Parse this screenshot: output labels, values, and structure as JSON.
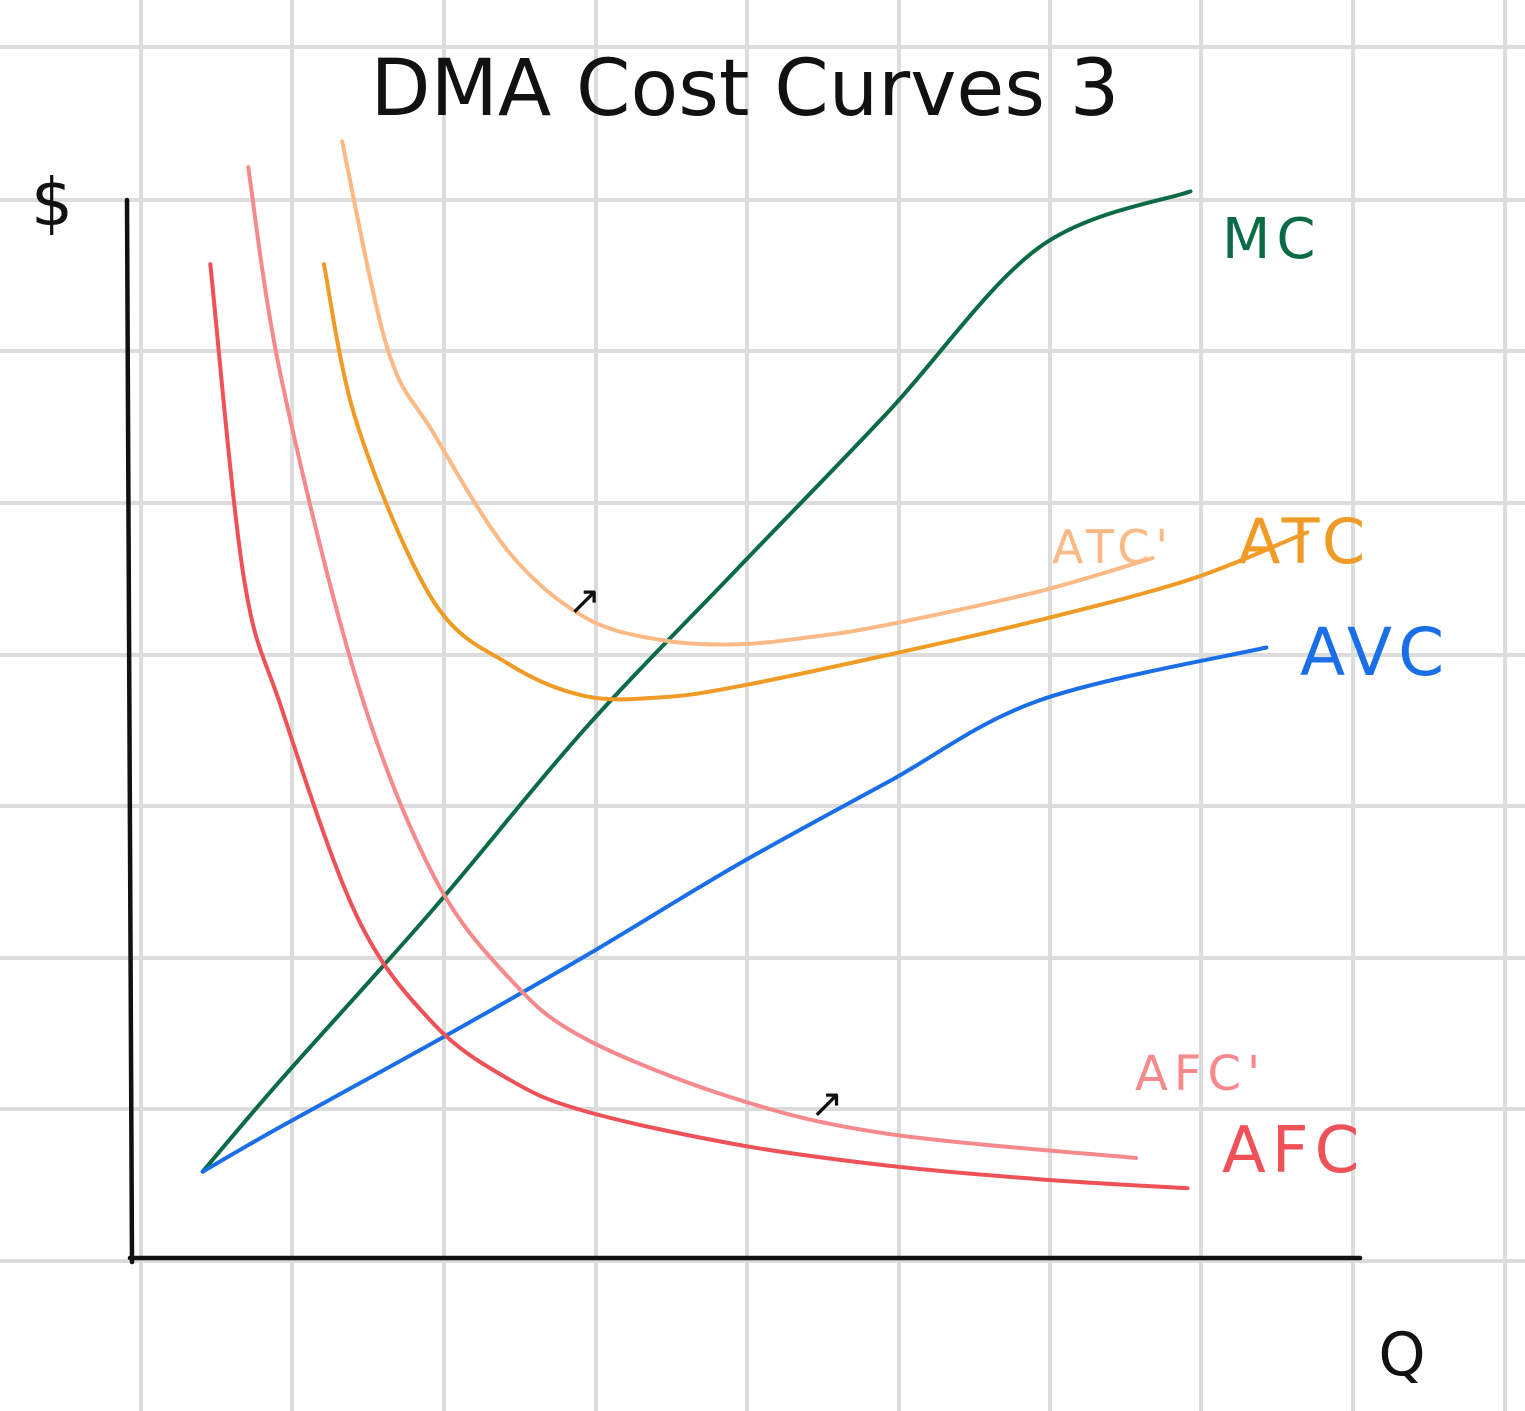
{
  "chart_data": {
    "type": "line",
    "title": "DMA Cost Curves 3",
    "xlabel": "Q",
    "ylabel": "$",
    "grid": true,
    "legend": "curve labels at right ends of curves",
    "series": [
      {
        "name": "MC",
        "color": "#0b6b45",
        "x": [
          0.48,
          1.0,
          2.0,
          3.0,
          4.0,
          5.0,
          6.0,
          7.0
        ],
        "y": [
          0.57,
          1.18,
          2.3,
          3.49,
          4.54,
          5.58,
          6.67,
          7.04
        ]
      },
      {
        "name": "AVC",
        "color": "#1a6ee8",
        "x": [
          0.48,
          1.0,
          2.0,
          3.0,
          4.0,
          5.0,
          6.0,
          7.5
        ],
        "y": [
          0.57,
          0.87,
          1.42,
          1.99,
          2.59,
          3.14,
          3.68,
          4.03
        ]
      },
      {
        "name": "ATC",
        "color": "#f09b25",
        "x": [
          1.28,
          1.5,
          2.0,
          2.5,
          3.0,
          3.5,
          4.0,
          5.0,
          6.0,
          7.0,
          7.77
        ],
        "y": [
          6.56,
          5.5,
          4.34,
          3.92,
          3.71,
          3.7,
          3.77,
          3.98,
          4.21,
          4.48,
          4.79
        ]
      },
      {
        "name": "ATC'",
        "color": "#fbb985",
        "x": [
          1.4,
          1.7,
          2.0,
          2.5,
          3.0,
          3.5,
          4.0,
          4.5,
          5.0,
          6.0,
          6.75
        ],
        "y": [
          7.37,
          6.0,
          5.45,
          4.66,
          4.23,
          4.08,
          4.05,
          4.1,
          4.18,
          4.4,
          4.62
        ]
      },
      {
        "name": "AFC",
        "color": "#ef5158",
        "x": [
          0.53,
          0.75,
          1.0,
          1.5,
          2.0,
          2.5,
          3.0,
          4.0,
          5.0,
          6.0,
          6.98
        ],
        "y": [
          6.56,
          4.5,
          3.63,
          2.25,
          1.55,
          1.18,
          0.97,
          0.75,
          0.61,
          0.52,
          0.46
        ]
      },
      {
        "name": "AFC'",
        "color": "#f6898c",
        "x": [
          0.78,
          1.0,
          1.5,
          2.0,
          2.5,
          3.0,
          4.0,
          5.0,
          6.64
        ],
        "y": [
          7.2,
          5.8,
          3.8,
          2.53,
          1.85,
          1.45,
          1.05,
          0.82,
          0.66
        ]
      }
    ],
    "annotations": [
      {
        "text": "↗",
        "near": "ATC shift arrow",
        "x": 3.0,
        "y": 4.25
      },
      {
        "text": "↗",
        "near": "AFC shift arrow",
        "x": 4.6,
        "y": 0.93
      }
    ]
  }
}
